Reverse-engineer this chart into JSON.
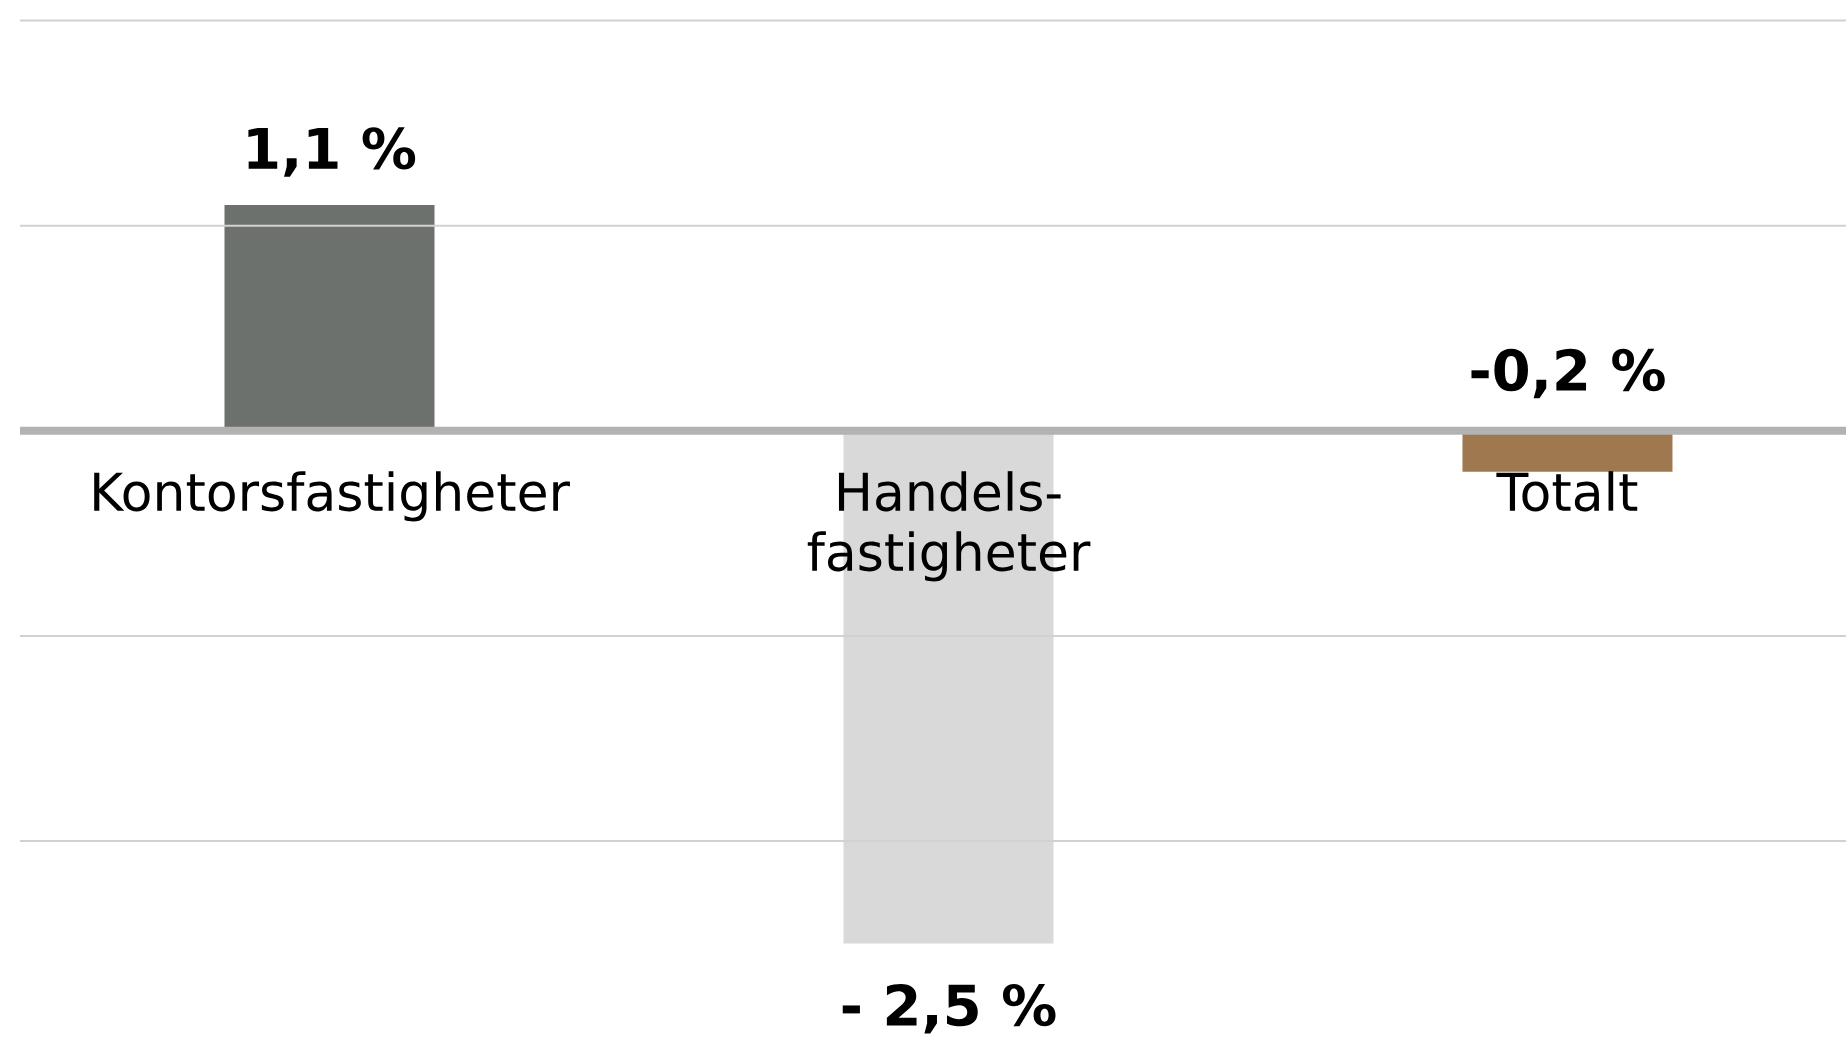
{
  "chart_data": {
    "type": "bar",
    "categories": [
      "Kontorsfastigheter",
      "Handels- fastigheter",
      "Totalt"
    ],
    "values": [
      1.1,
      -2.5,
      -0.2
    ],
    "value_labels": [
      "1,1 %",
      "- 2,5 %",
      "-0,2 %"
    ],
    "colors": [
      "#6d716e",
      "#d9d9d9",
      "#a0784f"
    ],
    "grid": "y",
    "tick_labels": "x"
  }
}
